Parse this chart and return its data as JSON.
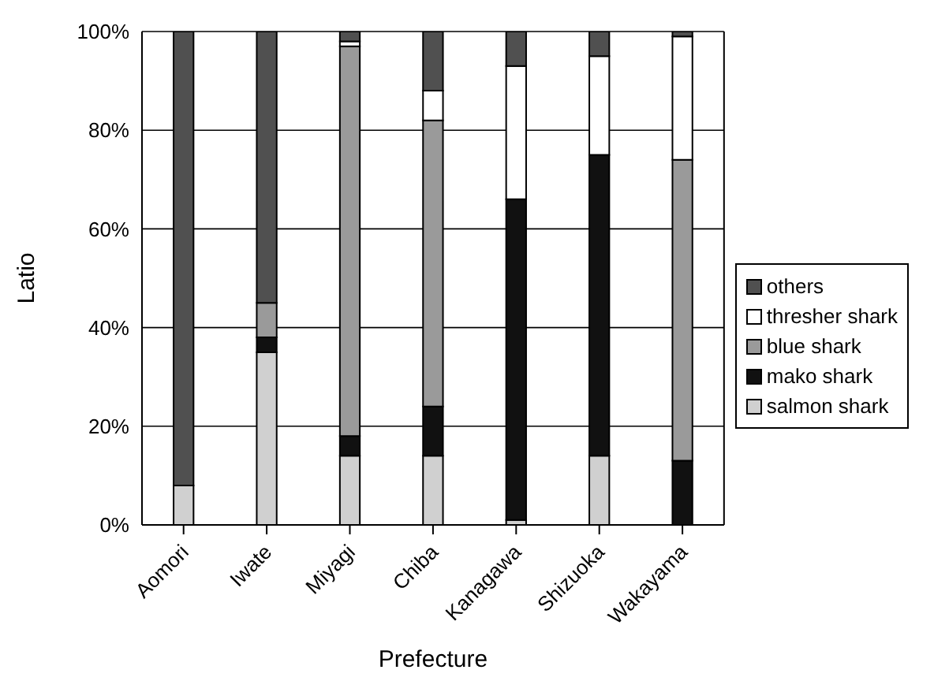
{
  "chart_data": {
    "type": "bar",
    "stacked": true,
    "xlabel": "Prefecture",
    "ylabel": "Latio",
    "categories": [
      "Aomori",
      "Iwate",
      "Miyagi",
      "Chiba",
      "Kanagawa",
      "Shizuoka",
      "Wakayama"
    ],
    "series": [
      {
        "name": "salmon shark",
        "color": "#d0d0d0",
        "values": [
          8,
          35,
          14,
          14,
          1,
          14,
          0
        ]
      },
      {
        "name": "mako shark",
        "color": "#111111",
        "values": [
          0,
          3,
          4,
          10,
          65,
          61,
          13
        ]
      },
      {
        "name": "blue shark",
        "color": "#9a9a9a",
        "values": [
          0,
          7,
          79,
          58,
          0,
          0,
          61
        ]
      },
      {
        "name": "thresher shark",
        "color": "#ffffff",
        "values": [
          0,
          0,
          1,
          6,
          27,
          20,
          25
        ]
      },
      {
        "name": "others",
        "color": "#505050",
        "values": [
          92,
          55,
          2,
          12,
          7,
          5,
          1
        ]
      }
    ],
    "ylim": [
      0,
      100
    ],
    "yticks": [
      {
        "value": 0,
        "label": "0%"
      },
      {
        "value": 20,
        "label": "20%"
      },
      {
        "value": 40,
        "label": "40%"
      },
      {
        "value": 60,
        "label": "60%"
      },
      {
        "value": 80,
        "label": "80%"
      },
      {
        "value": 100,
        "label": "100%"
      }
    ],
    "grid": "y",
    "legend": "right"
  }
}
